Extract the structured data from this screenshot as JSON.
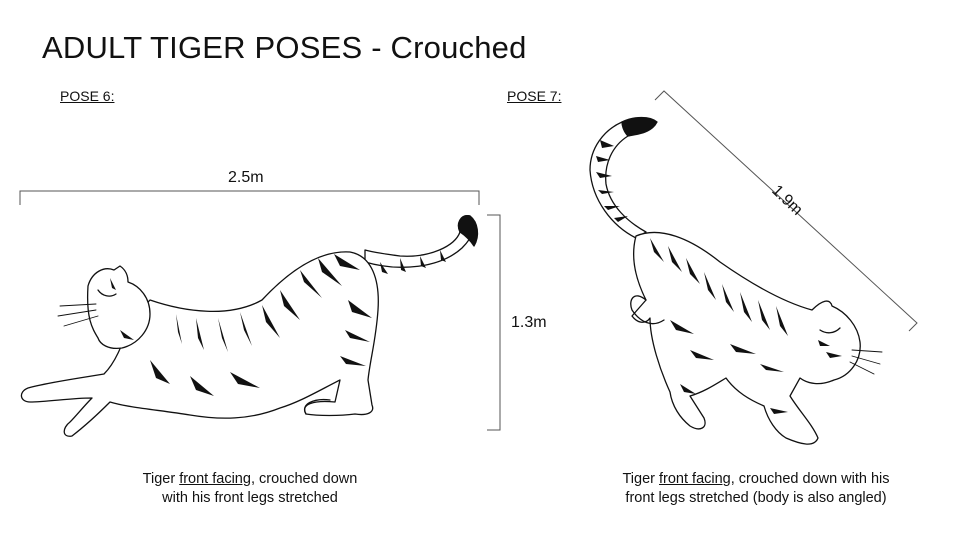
{
  "title": "ADULT TIGER POSES - Crouched",
  "poses": [
    {
      "label": "POSE 6:",
      "width": "2.5m",
      "height": "1.3m",
      "caption_pre": "Tiger ",
      "caption_link": "front facing",
      "caption_line1_post": ", crouched down",
      "caption_line2": "with his front legs stretched"
    },
    {
      "label": "POSE 7:",
      "length": "1.9m",
      "caption_pre": "Tiger ",
      "caption_link": "front facing",
      "caption_line1_post": ", crouched down with his",
      "caption_line2": "front legs stretched (body is also angled)"
    }
  ]
}
